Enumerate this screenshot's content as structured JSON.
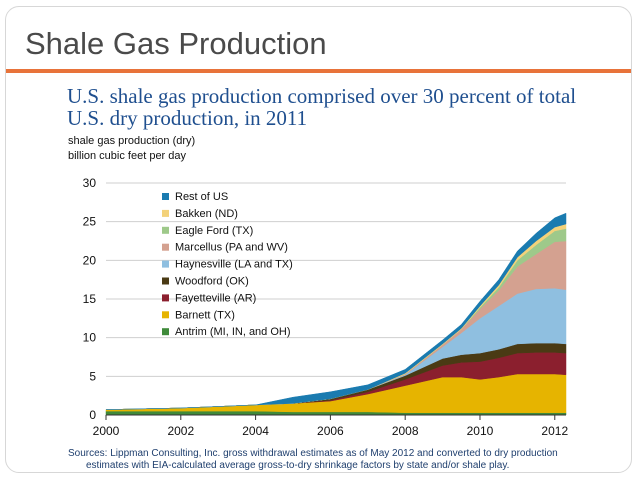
{
  "slide": {
    "title": "Shale Gas Production"
  },
  "chart_data": {
    "type": "area",
    "title": "U.S. shale gas production comprised over 30 percent of total U.S. dry production, in 2011",
    "ylabel_line1": "shale gas production (dry)",
    "ylabel_line2": "billion cubic feet per day",
    "ylim": [
      0,
      30
    ],
    "xlim": [
      2000,
      2012.3
    ],
    "y_ticks": [
      0,
      5,
      10,
      15,
      20,
      25,
      30
    ],
    "x_ticks": [
      2000,
      2002,
      2004,
      2006,
      2008,
      2010,
      2012
    ],
    "grid": "horizontal",
    "legend_position": "top-left",
    "stack_order": [
      "Antrim (MI, IN, and OH)",
      "Barnett (TX)",
      "Fayetteville (AR)",
      "Woodford (OK)",
      "Haynesville (LA and TX)",
      "Marcellus (PA and WV)",
      "Eagle Ford (TX)",
      "Bakken (ND)",
      "Rest of US"
    ],
    "x": [
      2000,
      2001,
      2002,
      2003,
      2004,
      2005,
      2006,
      2007,
      2008,
      2009,
      2009.5,
      2010,
      2010.5,
      2011,
      2011.5,
      2012,
      2012.3
    ],
    "series": [
      {
        "name": "Rest of US",
        "color": "#1a7bb0",
        "values": [
          0,
          0,
          0,
          0,
          0,
          0.8,
          0.9,
          0.6,
          0.5,
          0.5,
          0.5,
          0.6,
          0.7,
          0.8,
          1.0,
          1.2,
          1.4
        ]
      },
      {
        "name": "Bakken (ND)",
        "color": "#f3d27a",
        "values": [
          0,
          0,
          0,
          0,
          0,
          0,
          0,
          0,
          0.1,
          0.1,
          0.1,
          0.2,
          0.3,
          0.4,
          0.5,
          0.5,
          0.6
        ]
      },
      {
        "name": "Eagle Ford (TX)",
        "color": "#9ec98a",
        "values": [
          0,
          0,
          0,
          0,
          0,
          0,
          0,
          0,
          0,
          0,
          0,
          0.2,
          0.4,
          0.8,
          1.2,
          1.4,
          1.6
        ]
      },
      {
        "name": "Marcellus (PA and WV)",
        "color": "#d4a190",
        "values": [
          0,
          0,
          0,
          0,
          0,
          0,
          0,
          0,
          0.1,
          0.3,
          0.5,
          1.2,
          2.0,
          3.5,
          4.5,
          6.0,
          6.3
        ]
      },
      {
        "name": "Haynesville (LA and TX)",
        "color": "#8fbfe0",
        "values": [
          0,
          0,
          0,
          0,
          0,
          0,
          0,
          0,
          0.1,
          1.5,
          2.8,
          4.5,
          5.6,
          6.5,
          7.0,
          7.1,
          7.0
        ]
      },
      {
        "name": "Woodford (OK)",
        "color": "#4a3a14",
        "values": [
          0,
          0,
          0,
          0,
          0,
          0,
          0.2,
          0.3,
          0.5,
          0.9,
          1.0,
          1.1,
          1.1,
          1.2,
          1.2,
          1.2,
          1.2
        ]
      },
      {
        "name": "Fayetteville (AR)",
        "color": "#8b1f2e",
        "values": [
          0,
          0,
          0,
          0,
          0,
          0,
          0.1,
          0.3,
          0.8,
          1.5,
          1.9,
          2.3,
          2.5,
          2.7,
          2.8,
          2.8,
          2.8
        ]
      },
      {
        "name": "Barnett (TX)",
        "color": "#e6b400",
        "values": [
          0.2,
          0.3,
          0.4,
          0.6,
          0.8,
          1.1,
          1.4,
          2.3,
          3.5,
          4.6,
          4.6,
          4.3,
          4.6,
          5.0,
          5.0,
          5.0,
          4.9
        ]
      },
      {
        "name": "Antrim (MI, IN, and OH)",
        "color": "#3f8a3a",
        "values": [
          0.5,
          0.5,
          0.5,
          0.5,
          0.5,
          0.4,
          0.4,
          0.4,
          0.3,
          0.3,
          0.3,
          0.3,
          0.3,
          0.3,
          0.3,
          0.3,
          0.3
        ]
      }
    ],
    "note_line1": "Sources: Lippman Consulting, Inc. gross withdrawal estimates as of May 2012 and converted to dry production",
    "note_line2": "estimates with EIA-calculated average gross-to-dry shrinkage factors by state and/or shale play."
  }
}
